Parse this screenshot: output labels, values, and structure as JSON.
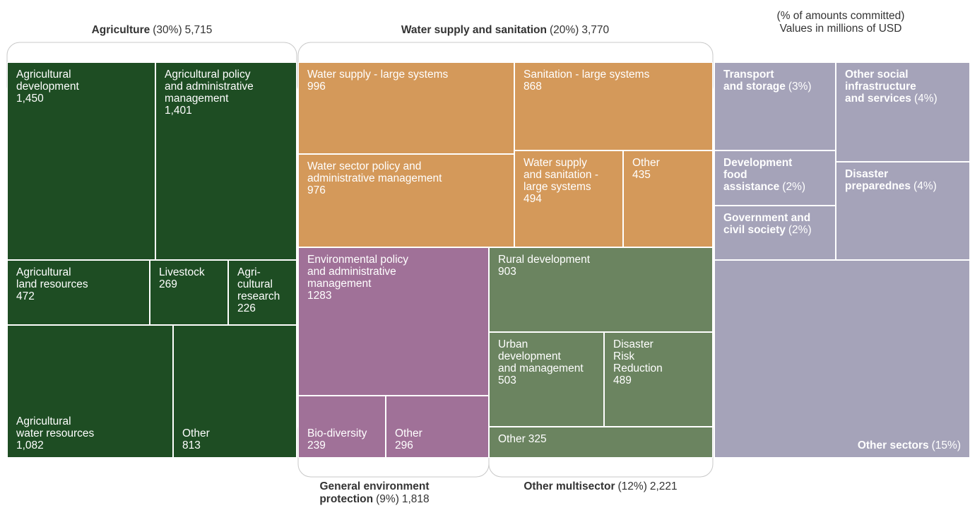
{
  "chart_data": {
    "type": "treemap",
    "note": "(% of amounts committed)\nValues in millions of USD",
    "groups": [
      {
        "name": "Agriculture",
        "share": 30,
        "share_label": "(30%)",
        "total": 5715,
        "total_label": "5,715",
        "color": "#1e4d23",
        "children": {
          "names": [
            "Agricultural\ndevelopment",
            "Agricultural policy\nand administrative\nmanagement",
            "Agricultural\nland resources",
            "Livestock",
            "Agri-\ncultural\nresearch",
            "Agricultural\nwater resources",
            "Other"
          ],
          "values": [
            1450,
            1401,
            472,
            269,
            226,
            1082,
            813
          ],
          "value_labels": [
            "1,450",
            "1,401",
            "472",
            "269",
            "226",
            "1,082",
            "813"
          ]
        }
      },
      {
        "name": "Water supply and sanitation",
        "share": 20,
        "share_label": "(20%)",
        "total": 3770,
        "total_label": "3,770",
        "color": "#d4995a",
        "children": {
          "names": [
            "Water supply - large systems",
            "Sanitation - large systems",
            "Water sector policy and\nadministrative management",
            "Water supply\nand sanitation -\nlarge systems",
            "Other"
          ],
          "values": [
            996,
            868,
            976,
            494,
            435
          ],
          "value_labels": [
            "996",
            "868",
            "976",
            "494",
            "435"
          ]
        }
      },
      {
        "name": "General environment\nprotection",
        "share": 9,
        "share_label": "(9%)",
        "total": 1818,
        "total_label": "1,818",
        "color": "#a07198",
        "children": {
          "names": [
            "Environmental policy\nand administrative\nmanagement",
            "Bio-diversity",
            "Other"
          ],
          "values": [
            1283,
            239,
            296
          ],
          "value_labels": [
            "1283",
            "239",
            "296"
          ]
        }
      },
      {
        "name": "Other multisector",
        "share": 12,
        "share_label": "(12%)",
        "total": 2221,
        "total_label": "2,221",
        "color": "#6b8460",
        "children": {
          "names": [
            "Rural development",
            "Urban\ndevelopment\nand management",
            "Disaster\nRisk\nReduction",
            "Other"
          ],
          "values": [
            903,
            503,
            489,
            325
          ],
          "value_labels": [
            "903",
            "503",
            "489",
            "325"
          ]
        }
      },
      {
        "color": "#a5a3b9",
        "children": {
          "names": [
            "Transport\nand storage",
            "Other social\ninfrastructure\nand services",
            "Development\nfood\nassistance",
            "Disaster\npreparednes",
            "Government and\ncivil society",
            "Other sectors"
          ],
          "values": [
            3,
            4,
            2,
            4,
            2,
            15
          ],
          "value_labels": [
            "(3%)",
            "(4%)",
            "(2%)",
            "(4%)",
            "(2%)",
            "(15%)"
          ]
        }
      }
    ]
  }
}
